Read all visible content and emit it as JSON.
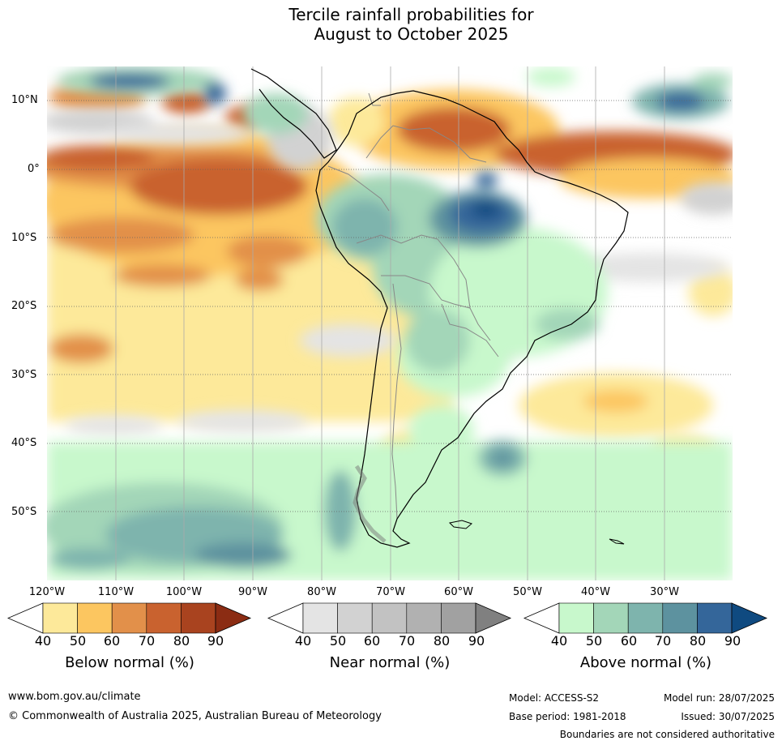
{
  "title": {
    "line1": "Tercile rainfall probabilities for",
    "line2": "August to October 2025"
  },
  "map": {
    "lat_labels": [
      "10°N",
      "0°",
      "10°S",
      "20°S",
      "30°S",
      "40°S",
      "50°S"
    ],
    "lon_labels": [
      "120°W",
      "110°W",
      "100°W",
      "90°W",
      "80°W",
      "70°W",
      "60°W",
      "50°W",
      "40°W",
      "30°W"
    ]
  },
  "colorbars": [
    {
      "id": "below",
      "title": "Below normal (%)",
      "ticks": [
        "40",
        "50",
        "60",
        "70",
        "80",
        "90"
      ],
      "colors": [
        "#ffffff",
        "#fde99a",
        "#fcc660",
        "#e2904a",
        "#c9622f",
        "#a9431f",
        "#8b2c13"
      ]
    },
    {
      "id": "near",
      "title": "Near normal (%)",
      "ticks": [
        "40",
        "50",
        "60",
        "70",
        "80",
        "90"
      ],
      "colors": [
        "#ffffff",
        "#e4e4e4",
        "#d2d2d2",
        "#c2c2c2",
        "#b1b1b1",
        "#a1a1a1",
        "#808080"
      ]
    },
    {
      "id": "above",
      "title": "Above normal (%)",
      "ticks": [
        "40",
        "50",
        "60",
        "70",
        "80",
        "90"
      ],
      "colors": [
        "#ffffff",
        "#c8f8cc",
        "#a3d6b8",
        "#7eb4ad",
        "#5d929f",
        "#34669a",
        "#0f4a80"
      ]
    }
  ],
  "footer": {
    "url": "www.bom.gov.au/climate",
    "copyright": "© Commonwealth of Australia 2025, Australian Bureau of Meteorology",
    "model": "Model: ACCESS-S2",
    "base_period": "Base period: 1981-2018",
    "model_run": "Model run: 28/07/2025",
    "issued": "Issued: 30/07/2025",
    "disclaimer": "Boundaries are not considered authoritative"
  }
}
